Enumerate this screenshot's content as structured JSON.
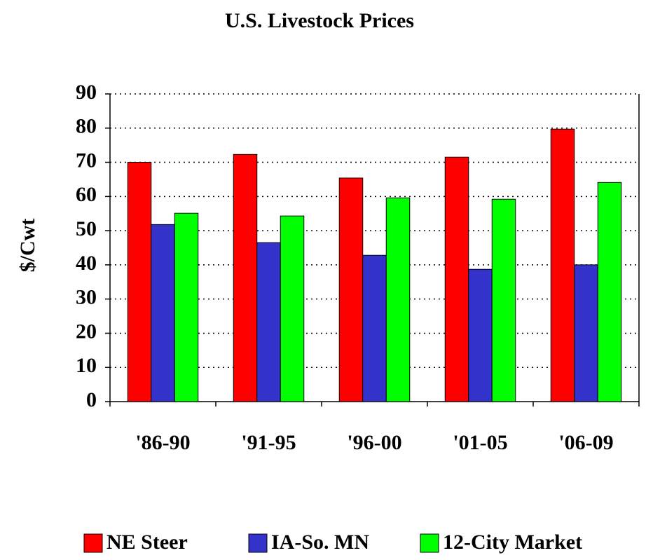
{
  "chart_data": {
    "type": "bar",
    "title": "U.S. Livestock Prices",
    "y_label": "$/Cwt",
    "categories": [
      "'86-90",
      "'91-95",
      "'96-00",
      "'01-05",
      "'06-09"
    ],
    "series": [
      {
        "name": "NE Steer",
        "color": "#ff0000",
        "values": [
          70,
          72.3,
          65.4,
          71.5,
          79.7
        ]
      },
      {
        "name": "IA-So. MN",
        "color": "#3333cc",
        "values": [
          51.8,
          46.5,
          42.8,
          38.7,
          40
        ]
      },
      {
        "name": "12-City Market",
        "color": "#00ff00",
        "values": [
          55.1,
          54.3,
          59.6,
          59.2,
          64.1
        ]
      }
    ],
    "ylim": [
      0,
      90
    ],
    "yticks": [
      0,
      10,
      20,
      30,
      40,
      50,
      60,
      70,
      80,
      90
    ],
    "grid": true
  }
}
